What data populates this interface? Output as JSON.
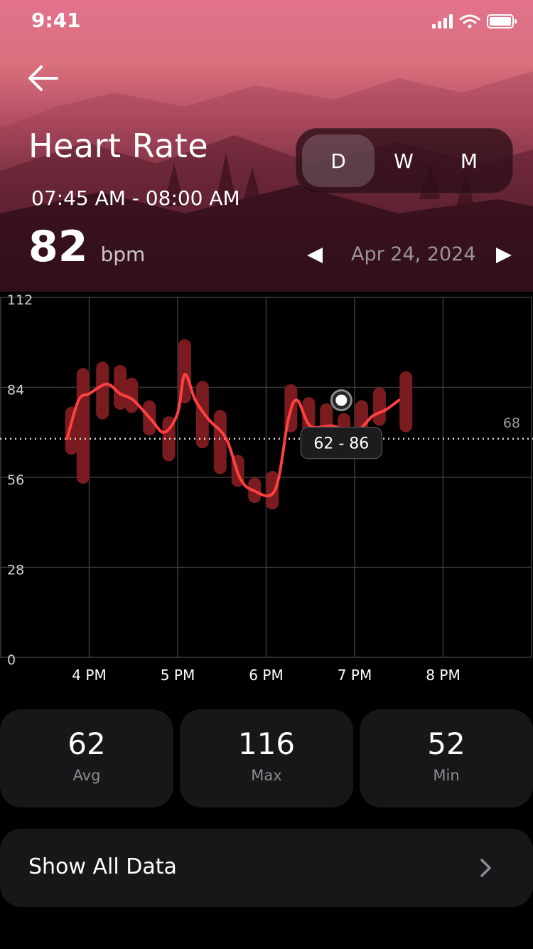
{
  "status_bar": {
    "time": "9:41"
  },
  "header": {
    "title": "Heart Rate",
    "time_range": "07:45 AM - 08:00 AM",
    "bpm_value": "82",
    "bpm_unit": "bpm"
  },
  "period_tabs": [
    {
      "label": "D",
      "active": true
    },
    {
      "label": "W",
      "active": false
    },
    {
      "label": "M",
      "active": false
    }
  ],
  "date_nav": {
    "date": "Apr 24, 2024"
  },
  "colors": {
    "accent": "#ff4040",
    "range_bar": "#7a1b1f",
    "card": "#171719"
  },
  "chart_data": {
    "type": "line",
    "x_categories": [
      "4 PM",
      "5 PM",
      "6 PM",
      "7 PM",
      "8 PM"
    ],
    "y_ticks": [
      0,
      28,
      56,
      84,
      112
    ],
    "ylim": [
      0,
      112
    ],
    "grid": true,
    "reference_line": {
      "value": 68,
      "label": "68"
    },
    "tooltip": {
      "text": "62 - 86"
    },
    "selected_point": {
      "x": 18.85,
      "y": 80
    },
    "range_bars": [
      {
        "x": 15.8,
        "low": 65,
        "high": 76
      },
      {
        "x": 15.93,
        "low": 56,
        "high": 88
      },
      {
        "x": 16.15,
        "low": 76,
        "high": 90
      },
      {
        "x": 16.35,
        "low": 79,
        "high": 89
      },
      {
        "x": 16.48,
        "low": 78,
        "high": 85
      },
      {
        "x": 16.68,
        "low": 71,
        "high": 78
      },
      {
        "x": 16.9,
        "low": 63,
        "high": 73
      },
      {
        "x": 17.08,
        "low": 81,
        "high": 97
      },
      {
        "x": 17.28,
        "low": 67,
        "high": 84
      },
      {
        "x": 17.48,
        "low": 59,
        "high": 75
      },
      {
        "x": 17.68,
        "low": 55,
        "high": 61
      },
      {
        "x": 17.87,
        "low": 50,
        "high": 54
      },
      {
        "x": 18.07,
        "low": 48,
        "high": 56
      },
      {
        "x": 18.28,
        "low": 72,
        "high": 83
      },
      {
        "x": 18.48,
        "low": 69,
        "high": 79
      },
      {
        "x": 18.68,
        "low": 70,
        "high": 77
      },
      {
        "x": 18.88,
        "low": 71,
        "high": 74
      },
      {
        "x": 19.08,
        "low": 72,
        "high": 78
      },
      {
        "x": 19.28,
        "low": 74,
        "high": 82
      },
      {
        "x": 19.58,
        "low": 72,
        "high": 87
      }
    ],
    "line_points": [
      {
        "x": 15.75,
        "y": 68
      },
      {
        "x": 15.88,
        "y": 80
      },
      {
        "x": 16.0,
        "y": 82
      },
      {
        "x": 16.2,
        "y": 85
      },
      {
        "x": 16.35,
        "y": 82
      },
      {
        "x": 16.5,
        "y": 80
      },
      {
        "x": 16.7,
        "y": 74
      },
      {
        "x": 16.85,
        "y": 70
      },
      {
        "x": 17.0,
        "y": 76
      },
      {
        "x": 17.08,
        "y": 88
      },
      {
        "x": 17.2,
        "y": 80
      },
      {
        "x": 17.35,
        "y": 74
      },
      {
        "x": 17.55,
        "y": 68
      },
      {
        "x": 17.7,
        "y": 56
      },
      {
        "x": 17.85,
        "y": 52
      },
      {
        "x": 18.1,
        "y": 52
      },
      {
        "x": 18.25,
        "y": 74
      },
      {
        "x": 18.35,
        "y": 80
      },
      {
        "x": 18.5,
        "y": 72
      },
      {
        "x": 18.75,
        "y": 72
      },
      {
        "x": 19.0,
        "y": 70
      },
      {
        "x": 19.2,
        "y": 75
      },
      {
        "x": 19.35,
        "y": 77
      },
      {
        "x": 19.5,
        "y": 80
      }
    ]
  },
  "stats": [
    {
      "value": "62",
      "label": "Avg"
    },
    {
      "value": "116",
      "label": "Max"
    },
    {
      "value": "52",
      "label": "Min"
    }
  ],
  "show_all": {
    "label": "Show All Data"
  }
}
